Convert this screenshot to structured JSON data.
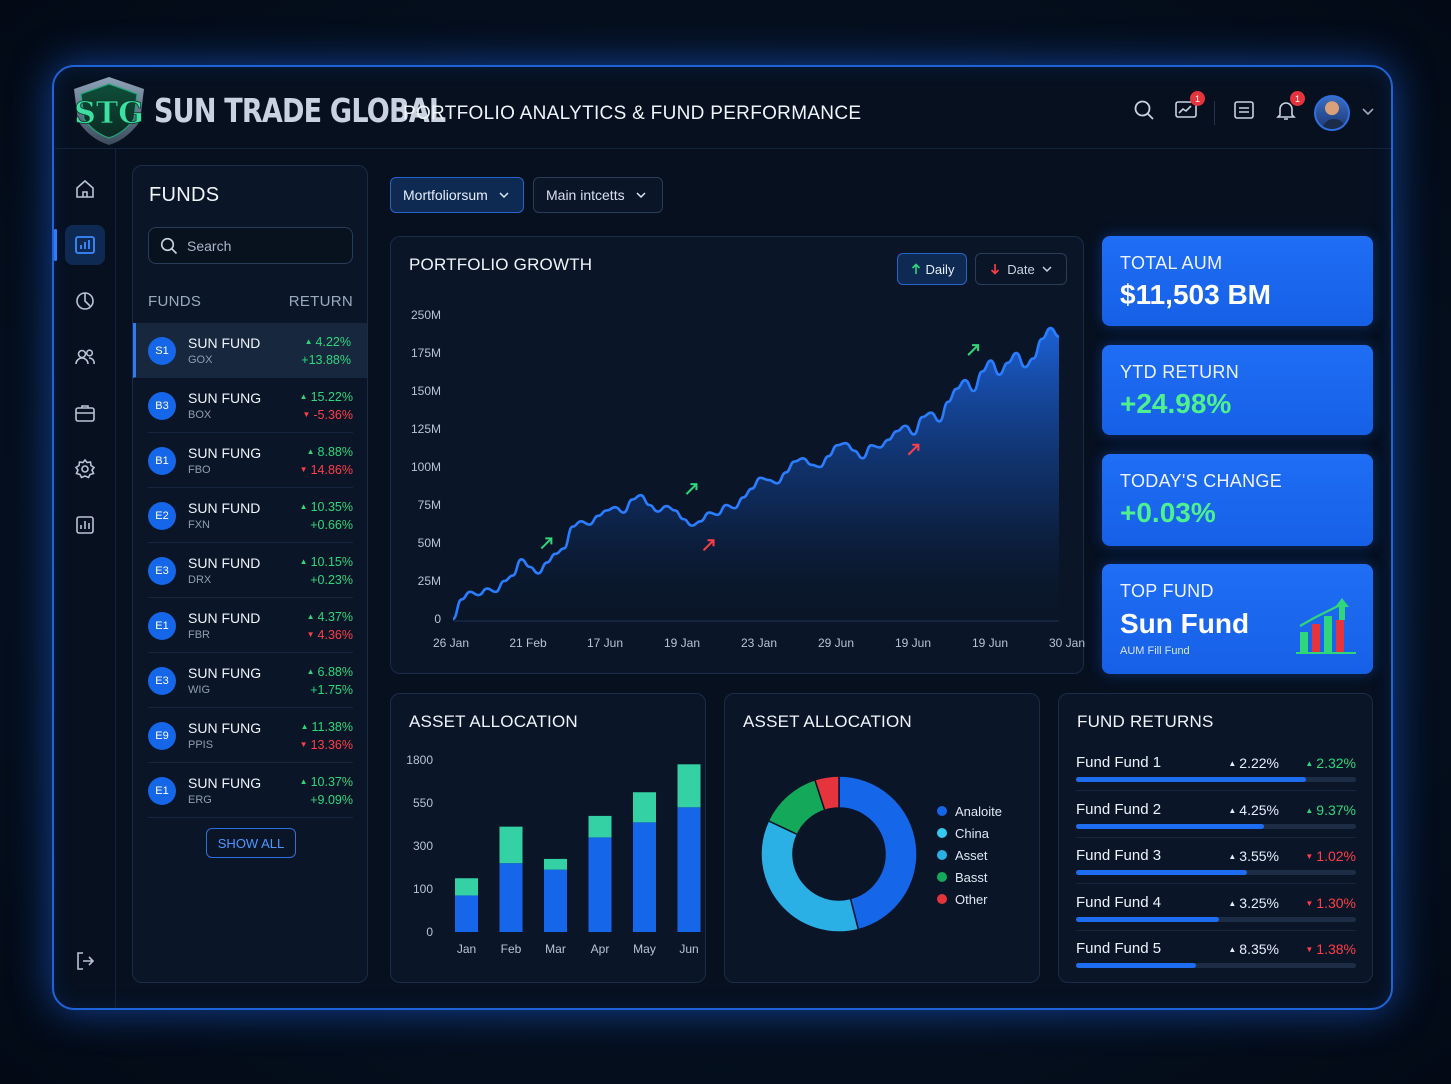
{
  "brand": {
    "name": "SUN TRADE GLOBAL",
    "logo_text": "STG"
  },
  "header": {
    "title": "PORTFOLIO ANALYTICS & FUND PERFORMANCE",
    "icons": [
      "search-icon",
      "chart-message-icon",
      "calendar-icon",
      "bell-icon",
      "avatar",
      "chevron-down-icon"
    ],
    "notif_chart_count": "1",
    "notif_bell_count": "1"
  },
  "rail": {
    "items": [
      "home-icon",
      "analytics-icon",
      "pie-icon",
      "users-icon",
      "briefcase-icon",
      "settings-icon",
      "report-icon",
      "logout-icon"
    ]
  },
  "funds_panel": {
    "title": "FUNDS",
    "search_placeholder": "Search",
    "col_funds": "FUNDS",
    "col_return": "RETURN",
    "show_all": "SHOW ALL",
    "items": [
      {
        "badge": "S1",
        "name": "SUN FUND",
        "code": "GOX",
        "r1": "4.22%",
        "r1_dir": "up",
        "r2": "+13.88%",
        "r2_dir": "pos"
      },
      {
        "badge": "B3",
        "name": "SUN FUNG",
        "code": "BOX",
        "r1": "15.22%",
        "r1_dir": "up",
        "r2": "-5.36%",
        "r2_dir": "neg"
      },
      {
        "badge": "B1",
        "name": "SUN FUNG",
        "code": "FBO",
        "r1": "8.88%",
        "r1_dir": "up",
        "r2": "14.86%",
        "r2_dir": "neg"
      },
      {
        "badge": "E2",
        "name": "SUN FUND",
        "code": "FXN",
        "r1": "10.35%",
        "r1_dir": "up",
        "r2": "+0.66%",
        "r2_dir": "pos"
      },
      {
        "badge": "E3",
        "name": "SUN FUND",
        "code": "DRX",
        "r1": "10.15%",
        "r1_dir": "up",
        "r2": "+0.23%",
        "r2_dir": "pos"
      },
      {
        "badge": "E1",
        "name": "SUN FUND",
        "code": "FBR",
        "r1": "4.37%",
        "r1_dir": "up",
        "r2": "4.36%",
        "r2_dir": "neg"
      },
      {
        "badge": "E3",
        "name": "SUN FUNG",
        "code": "WIG",
        "r1": "6.88%",
        "r1_dir": "up",
        "r2": "+1.75%",
        "r2_dir": "pos"
      },
      {
        "badge": "E9",
        "name": "SUN FUNG",
        "code": "PPIS",
        "r1": "11.38%",
        "r1_dir": "up",
        "r2": "13.36%",
        "r2_dir": "neg"
      },
      {
        "badge": "E1",
        "name": "SUN FUNG",
        "code": "ERG",
        "r1": "10.37%",
        "r1_dir": "up",
        "r2": "+9.09%",
        "r2_dir": "pos"
      }
    ]
  },
  "filters": {
    "dropdown1": "Mortfoliorsum",
    "dropdown2": "Main intcetts"
  },
  "growth": {
    "title": "PORTFOLIO GROWTH",
    "daily_label": "Daily",
    "date_label": "Date"
  },
  "kpis": {
    "aum_label": "TOTAL AUM",
    "aum_value": "$11,503 BM",
    "ytd_label": "YTD RETURN",
    "ytd_value": "+24.98%",
    "change_label": "TODAY'S CHANGE",
    "change_value": "+0.03%",
    "top_label": "TOP FUND",
    "top_value": "Sun Fund",
    "top_sub": "AUM Fill Fund"
  },
  "allocation_bar": {
    "title": "ASSET ALLOCATION"
  },
  "allocation_donut": {
    "title": "ASSET ALLOCATION"
  },
  "fund_returns": {
    "title": "FUND RETURNS",
    "rows": [
      {
        "name": "Fund Fund 1",
        "a": "2.22%",
        "b": "2.32%",
        "b_dir": "pos",
        "progress": 0.82
      },
      {
        "name": "Fund Fund 2",
        "a": "4.25%",
        "b": "9.37%",
        "b_dir": "pos",
        "progress": 0.67
      },
      {
        "name": "Fund Fund 3",
        "a": "3.55%",
        "b": "1.02%",
        "b_dir": "neg",
        "progress": 0.61
      },
      {
        "name": "Fund Fund 4",
        "a": "3.25%",
        "b": "1.30%",
        "b_dir": "neg",
        "progress": 0.51
      },
      {
        "name": "Fund Fund 5",
        "a": "8.35%",
        "b": "1.38%",
        "b_dir": "neg",
        "progress": 0.43
      }
    ]
  },
  "colors": {
    "accent": "#1e6cf0",
    "positive": "#2fd67a",
    "negative": "#ff3e48",
    "kpi_bg": "#1f6ef5"
  },
  "chart_data": [
    {
      "type": "area",
      "title": "PORTFOLIO GROWTH",
      "x_ticks": [
        "26 Jan",
        "21 Feb",
        "17 Jun",
        "19 Jan",
        "23 Jan",
        "29 Jun",
        "19 Jun",
        "19 Jun",
        "30 Jan"
      ],
      "y_ticks": [
        "0",
        "25M",
        "50M",
        "75M",
        "100M",
        "125M",
        "150M",
        "175M",
        "250M"
      ],
      "series": [
        {
          "values": [
            0,
            18,
            25,
            22,
            28,
            25,
            35,
            40,
            55,
            48,
            42,
            52,
            60,
            65,
            85,
            90,
            87,
            95,
            100,
            103,
            98,
            110,
            114,
            105,
            99,
            104,
            100,
            92,
            86,
            90,
            98,
            96,
            105,
            102,
            112,
            120,
            130,
            128,
            125,
            135,
            145,
            148,
            142,
            140,
            150,
            160,
            162,
            155,
            148,
            160,
            158,
            165,
            173,
            178,
            170,
            186,
            190,
            182,
            200,
            212,
            220,
            210,
            228,
            238,
            225,
            236,
            245,
            232,
            240,
            258,
            268,
            260
          ]
        }
      ],
      "markers": [
        {
          "i": 10,
          "dir": "up"
        },
        {
          "i": 27,
          "dir": "up"
        },
        {
          "i": 29,
          "dir": "down"
        },
        {
          "i": 53,
          "dir": "down"
        },
        {
          "i": 60,
          "dir": "up"
        }
      ]
    },
    {
      "type": "bar",
      "title": "ASSET ALLOCATION",
      "categories": [
        "Jan",
        "Feb",
        "Mar",
        "Apr",
        "May",
        "Jun"
      ],
      "y_ticks": [
        "0",
        "100",
        "300",
        "550",
        "1800"
      ],
      "series": [
        {
          "values": [
            0.85,
            1.6,
            1.45,
            2.2,
            2.55,
            2.9
          ],
          "color": "#1566e8"
        },
        {
          "values": [
            0.4,
            0.85,
            0.25,
            0.5,
            0.7,
            1.0
          ],
          "color": "#34d1a4"
        }
      ]
    },
    {
      "type": "pie",
      "title": "ASSET ALLOCATION",
      "labels": [
        "Analoite",
        "China",
        "Asset",
        "Basst",
        "Other"
      ],
      "values": [
        46,
        0,
        36,
        13,
        5
      ],
      "colors": [
        "#1566e8",
        "#35c8f0",
        "#2bb0e6",
        "#14a85a",
        "#e5343b"
      ]
    }
  ]
}
